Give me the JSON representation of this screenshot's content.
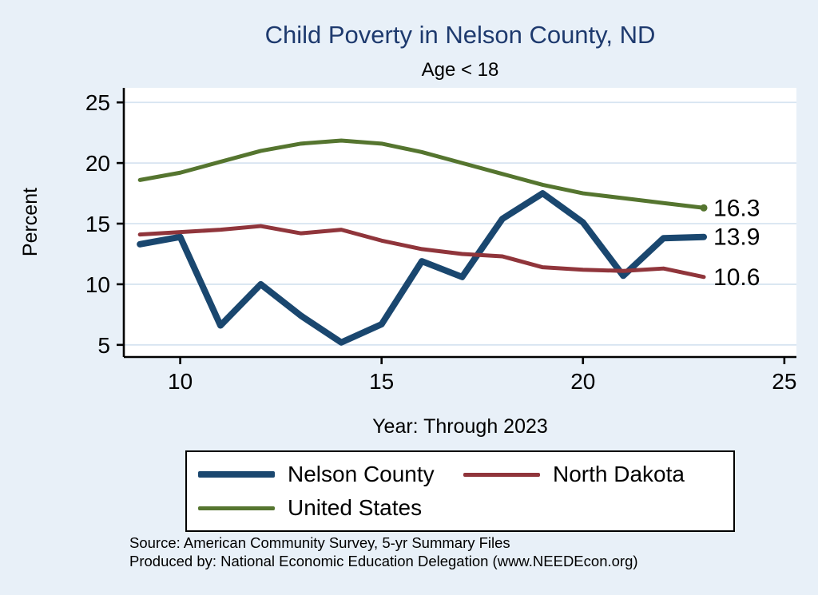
{
  "title": "Child Poverty in Nelson County, ND",
  "subtitle": "Age < 18",
  "y_axis_label": "Percent",
  "x_axis_label": "Year: Through 2023",
  "source_line1": "Source: American Community Survey, 5-yr Summary Files",
  "source_line2": "Produced by: National Economic Education Delegation (www.NEEDEcon.org)",
  "colors": {
    "background": "#e8f0f8",
    "title": "#1e3a6e",
    "grid": "#d7e4f1",
    "axis": "#000000",
    "plot_background": "#ffffff"
  },
  "chart_data": {
    "type": "line",
    "x": [
      9,
      10,
      11,
      12,
      13,
      14,
      15,
      16,
      17,
      18,
      19,
      20,
      21,
      22,
      23
    ],
    "x_ticks": [
      10,
      15,
      20,
      25
    ],
    "y_ticks": [
      5,
      10,
      15,
      20,
      25
    ],
    "xlim": [
      8.6,
      25.3
    ],
    "ylim": [
      4.0,
      26.2
    ],
    "grid": true,
    "legend_position": "bottom",
    "title": "Child Poverty in Nelson County, ND",
    "subtitle": "Age < 18",
    "xlabel": "Year: Through 2023",
    "ylabel": "Percent",
    "series": [
      {
        "name": "Nelson County",
        "color": "#1a476f",
        "width": 8,
        "values": [
          13.3,
          13.9,
          6.6,
          10.0,
          7.4,
          5.2,
          6.7,
          11.9,
          10.6,
          15.4,
          17.5,
          15.1,
          10.7,
          13.8,
          13.9
        ]
      },
      {
        "name": "North Dakota",
        "color": "#90353b",
        "width": 5,
        "values": [
          14.1,
          14.3,
          14.5,
          14.8,
          14.2,
          14.5,
          13.6,
          12.9,
          12.5,
          12.3,
          11.4,
          11.2,
          11.1,
          11.3,
          10.6
        ]
      },
      {
        "name": "United States",
        "color": "#55752f",
        "width": 5,
        "end_marker": true,
        "values": [
          18.6,
          19.2,
          20.1,
          21.0,
          21.6,
          21.85,
          21.6,
          20.9,
          20.0,
          19.1,
          18.2,
          17.5,
          17.1,
          16.7,
          16.3
        ]
      }
    ],
    "end_labels": [
      "16.3",
      "13.9",
      "10.6"
    ]
  }
}
